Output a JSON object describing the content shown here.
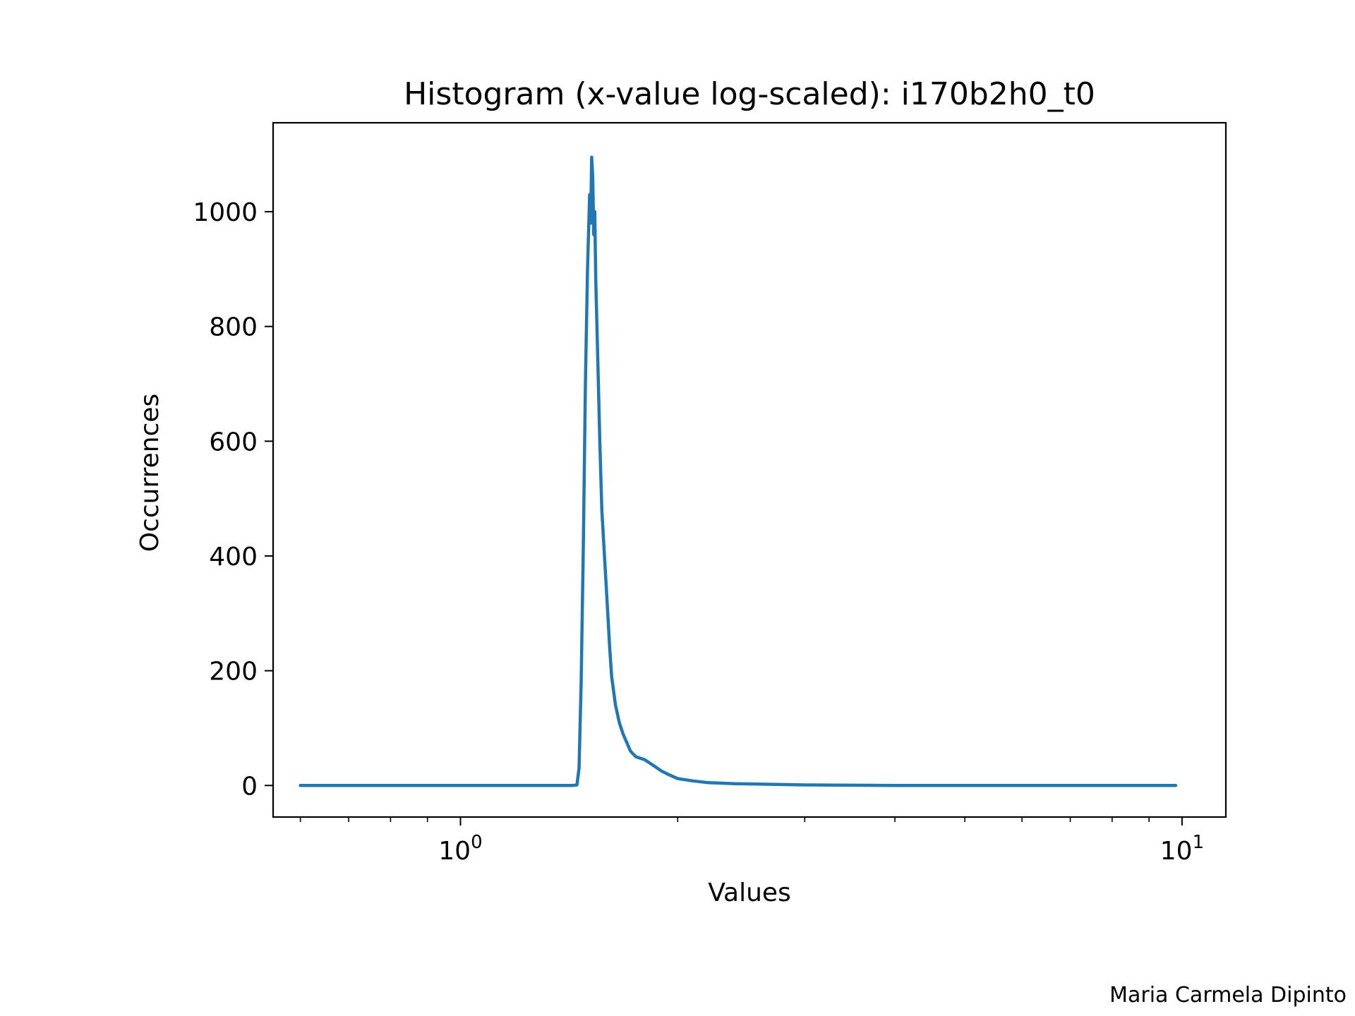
{
  "chart_data": {
    "type": "line",
    "title": "Histogram  (x-value log-scaled): i170b2h0_t0",
    "xlabel": "Values",
    "ylabel": "Occurrences",
    "xscale": "log",
    "xlim": [
      0.55,
      11.5
    ],
    "ylim": [
      -55,
      1155
    ],
    "grid": false,
    "x_ticks": [
      {
        "value": 1,
        "base": "10",
        "exp": "0"
      },
      {
        "value": 10,
        "base": "10",
        "exp": "1"
      }
    ],
    "y_ticks": [
      0,
      200,
      400,
      600,
      800,
      1000
    ],
    "y_tick_labels": [
      "0",
      "200",
      "400",
      "600",
      "800",
      "1000"
    ],
    "series": [
      {
        "color": "#1f77b4",
        "points": [
          [
            0.6,
            0
          ],
          [
            0.8,
            0
          ],
          [
            1.0,
            0
          ],
          [
            1.2,
            0
          ],
          [
            1.35,
            0
          ],
          [
            1.43,
            0
          ],
          [
            1.45,
            1
          ],
          [
            1.46,
            30
          ],
          [
            1.47,
            180
          ],
          [
            1.48,
            420
          ],
          [
            1.49,
            700
          ],
          [
            1.5,
            900
          ],
          [
            1.51,
            1030
          ],
          [
            1.515,
            980
          ],
          [
            1.52,
            1095
          ],
          [
            1.525,
            1060
          ],
          [
            1.53,
            960
          ],
          [
            1.535,
            1000
          ],
          [
            1.54,
            880
          ],
          [
            1.55,
            740
          ],
          [
            1.56,
            600
          ],
          [
            1.57,
            480
          ],
          [
            1.58,
            420
          ],
          [
            1.59,
            360
          ],
          [
            1.6,
            300
          ],
          [
            1.61,
            240
          ],
          [
            1.62,
            190
          ],
          [
            1.64,
            140
          ],
          [
            1.66,
            110
          ],
          [
            1.68,
            90
          ],
          [
            1.7,
            75
          ],
          [
            1.72,
            60
          ],
          [
            1.75,
            50
          ],
          [
            1.8,
            45
          ],
          [
            1.85,
            35
          ],
          [
            1.9,
            25
          ],
          [
            1.95,
            18
          ],
          [
            2.0,
            12
          ],
          [
            2.1,
            8
          ],
          [
            2.2,
            5
          ],
          [
            2.4,
            3
          ],
          [
            2.7,
            2
          ],
          [
            3.0,
            1
          ],
          [
            4.0,
            0
          ],
          [
            6.0,
            0
          ],
          [
            8.0,
            0
          ],
          [
            9.8,
            0
          ]
        ]
      }
    ]
  },
  "credit": "Maria Carmela Dipinto"
}
